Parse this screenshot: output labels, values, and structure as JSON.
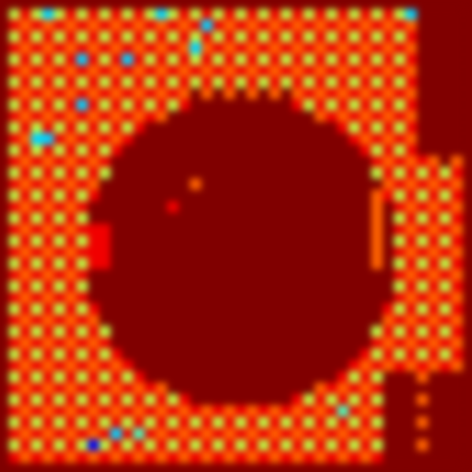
{
  "chart_data": {
    "type": "heatmap",
    "color": "jet",
    "tick_labels": false,
    "grid": false,
    "zlim": [
      0,
      9
    ],
    "cells": [
      [
        5,
        8,
        5,
        3,
        5,
        8,
        5,
        8,
        5,
        8,
        5,
        8,
        5,
        3,
        5,
        8,
        5,
        8,
        5,
        8,
        5,
        8,
        5,
        8,
        5,
        8,
        5,
        8,
        5,
        8,
        5,
        8,
        5,
        8,
        5,
        3,
        9,
        9,
        9,
        9
      ],
      [
        8,
        7,
        8,
        7,
        8,
        7,
        8,
        7,
        8,
        7,
        8,
        7,
        8,
        7,
        8,
        7,
        8,
        3,
        8,
        7,
        8,
        7,
        8,
        7,
        8,
        7,
        8,
        7,
        8,
        7,
        8,
        7,
        8,
        7,
        8,
        7,
        9,
        9,
        9,
        9
      ],
      [
        5,
        8,
        5,
        8,
        5,
        8,
        5,
        8,
        5,
        8,
        5,
        8,
        5,
        8,
        5,
        8,
        5,
        8,
        5,
        8,
        5,
        8,
        5,
        8,
        5,
        8,
        5,
        8,
        5,
        8,
        5,
        8,
        5,
        8,
        5,
        8,
        9,
        9,
        9,
        9
      ],
      [
        8,
        7,
        8,
        7,
        8,
        7,
        8,
        7,
        8,
        7,
        8,
        7,
        8,
        7,
        8,
        7,
        3,
        7,
        8,
        7,
        8,
        7,
        8,
        7,
        8,
        7,
        8,
        7,
        8,
        7,
        8,
        7,
        8,
        7,
        8,
        7,
        9,
        9,
        9,
        9
      ],
      [
        5,
        8,
        5,
        8,
        5,
        8,
        3,
        8,
        5,
        8,
        3,
        8,
        5,
        8,
        5,
        8,
        5,
        8,
        5,
        8,
        5,
        8,
        5,
        8,
        5,
        8,
        5,
        8,
        5,
        8,
        5,
        8,
        5,
        8,
        5,
        8,
        9,
        9,
        9,
        9
      ],
      [
        8,
        7,
        8,
        7,
        8,
        7,
        8,
        7,
        8,
        7,
        8,
        7,
        8,
        7,
        8,
        7,
        8,
        7,
        8,
        7,
        8,
        7,
        8,
        7,
        8,
        7,
        8,
        7,
        8,
        7,
        8,
        7,
        8,
        7,
        8,
        7,
        9,
        9,
        9,
        9
      ],
      [
        5,
        8,
        5,
        8,
        5,
        8,
        5,
        8,
        5,
        8,
        5,
        8,
        5,
        8,
        5,
        8,
        5,
        8,
        5,
        8,
        5,
        8,
        5,
        8,
        5,
        8,
        5,
        8,
        5,
        8,
        5,
        8,
        5,
        8,
        5,
        8,
        9,
        9,
        9,
        9
      ],
      [
        8,
        7,
        8,
        7,
        8,
        7,
        8,
        7,
        8,
        7,
        8,
        7,
        8,
        7,
        8,
        7,
        9,
        7,
        9,
        7,
        9,
        7,
        9,
        7,
        9,
        7,
        8,
        7,
        8,
        7,
        8,
        7,
        8,
        7,
        8,
        7,
        9,
        9,
        9,
        9
      ],
      [
        5,
        8,
        5,
        8,
        5,
        8,
        3,
        8,
        5,
        8,
        5,
        8,
        5,
        8,
        5,
        8,
        9,
        9,
        9,
        9,
        9,
        9,
        9,
        9,
        9,
        8,
        5,
        8,
        5,
        8,
        5,
        8,
        5,
        8,
        5,
        8,
        9,
        9,
        9,
        9
      ],
      [
        8,
        7,
        8,
        7,
        8,
        7,
        8,
        7,
        8,
        7,
        8,
        7,
        8,
        7,
        9,
        9,
        9,
        9,
        9,
        9,
        9,
        9,
        9,
        9,
        9,
        9,
        9,
        7,
        8,
        7,
        8,
        7,
        8,
        7,
        8,
        7,
        9,
        9,
        9,
        9
      ],
      [
        5,
        8,
        5,
        8,
        5,
        8,
        5,
        8,
        5,
        8,
        5,
        8,
        9,
        9,
        9,
        9,
        9,
        9,
        9,
        9,
        9,
        9,
        9,
        9,
        9,
        9,
        9,
        9,
        9,
        8,
        5,
        8,
        5,
        8,
        5,
        8,
        9,
        9,
        9,
        9
      ],
      [
        8,
        7,
        3,
        3,
        8,
        7,
        8,
        7,
        8,
        7,
        8,
        9,
        9,
        9,
        9,
        9,
        9,
        9,
        9,
        9,
        9,
        9,
        9,
        9,
        9,
        9,
        9,
        9,
        9,
        9,
        8,
        7,
        8,
        7,
        8,
        7,
        9,
        9,
        9,
        9
      ],
      [
        5,
        8,
        5,
        8,
        5,
        8,
        5,
        8,
        5,
        8,
        9,
        9,
        9,
        9,
        9,
        9,
        9,
        9,
        9,
        9,
        9,
        9,
        9,
        9,
        9,
        9,
        9,
        9,
        9,
        9,
        9,
        8,
        5,
        8,
        5,
        8,
        9,
        9,
        9,
        9
      ],
      [
        8,
        7,
        8,
        7,
        8,
        7,
        8,
        7,
        8,
        9,
        9,
        9,
        9,
        9,
        9,
        9,
        9,
        9,
        9,
        9,
        9,
        9,
        9,
        9,
        9,
        9,
        9,
        9,
        9,
        9,
        9,
        9,
        8,
        7,
        8,
        7,
        8,
        7,
        9,
        7
      ],
      [
        5,
        8,
        5,
        8,
        5,
        8,
        5,
        8,
        5,
        9,
        9,
        9,
        9,
        9,
        9,
        9,
        9,
        9,
        9,
        9,
        9,
        9,
        9,
        9,
        9,
        9,
        9,
        9,
        9,
        9,
        9,
        9,
        5,
        8,
        5,
        8,
        5,
        8,
        5,
        8
      ],
      [
        8,
        7,
        8,
        7,
        8,
        7,
        8,
        7,
        9,
        9,
        9,
        9,
        9,
        9,
        9,
        9,
        7,
        9,
        9,
        9,
        9,
        9,
        9,
        9,
        9,
        9,
        9,
        9,
        9,
        9,
        9,
        9,
        9,
        7,
        8,
        7,
        8,
        7,
        8,
        7
      ],
      [
        5,
        8,
        5,
        8,
        5,
        8,
        5,
        8,
        9,
        9,
        9,
        9,
        9,
        9,
        9,
        9,
        9,
        9,
        9,
        9,
        9,
        9,
        9,
        9,
        9,
        9,
        9,
        9,
        9,
        9,
        9,
        9,
        7,
        8,
        5,
        8,
        5,
        8,
        5,
        8
      ],
      [
        8,
        7,
        8,
        7,
        8,
        7,
        8,
        9,
        9,
        9,
        9,
        9,
        9,
        9,
        8,
        9,
        9,
        9,
        9,
        9,
        9,
        9,
        9,
        9,
        9,
        9,
        9,
        9,
        9,
        9,
        9,
        9,
        7,
        9,
        8,
        7,
        8,
        7,
        8,
        7
      ],
      [
        5,
        8,
        5,
        8,
        5,
        8,
        5,
        9,
        9,
        9,
        9,
        9,
        9,
        9,
        9,
        9,
        9,
        9,
        9,
        9,
        9,
        9,
        9,
        9,
        9,
        9,
        9,
        9,
        9,
        9,
        9,
        9,
        7,
        9,
        5,
        8,
        5,
        8,
        5,
        8
      ],
      [
        8,
        7,
        8,
        7,
        8,
        7,
        8,
        8,
        8,
        9,
        9,
        9,
        9,
        9,
        9,
        9,
        9,
        9,
        9,
        9,
        9,
        9,
        9,
        9,
        9,
        9,
        9,
        9,
        9,
        9,
        9,
        9,
        7,
        9,
        8,
        7,
        8,
        7,
        8,
        7
      ],
      [
        5,
        8,
        5,
        8,
        5,
        8,
        5,
        8,
        8,
        9,
        9,
        9,
        9,
        9,
        9,
        9,
        9,
        9,
        9,
        9,
        9,
        9,
        9,
        9,
        9,
        9,
        9,
        9,
        9,
        9,
        9,
        9,
        7,
        9,
        5,
        8,
        5,
        8,
        5,
        8
      ],
      [
        8,
        7,
        8,
        7,
        8,
        7,
        8,
        8,
        8,
        9,
        9,
        9,
        9,
        9,
        9,
        9,
        9,
        9,
        9,
        9,
        9,
        9,
        9,
        9,
        9,
        9,
        9,
        9,
        9,
        9,
        9,
        9,
        7,
        9,
        8,
        7,
        8,
        7,
        8,
        7
      ],
      [
        5,
        8,
        5,
        8,
        5,
        8,
        5,
        8,
        8,
        9,
        9,
        9,
        9,
        9,
        9,
        9,
        9,
        9,
        9,
        9,
        9,
        9,
        9,
        9,
        9,
        9,
        9,
        9,
        9,
        9,
        9,
        9,
        7,
        9,
        5,
        8,
        5,
        8,
        5,
        8
      ],
      [
        8,
        7,
        8,
        7,
        8,
        7,
        8,
        9,
        9,
        9,
        9,
        9,
        9,
        9,
        9,
        9,
        9,
        9,
        9,
        9,
        9,
        9,
        9,
        9,
        9,
        9,
        9,
        9,
        9,
        9,
        9,
        9,
        9,
        9,
        8,
        7,
        8,
        7,
        8,
        7
      ],
      [
        5,
        8,
        5,
        8,
        5,
        8,
        5,
        9,
        9,
        9,
        9,
        9,
        9,
        9,
        9,
        9,
        9,
        9,
        9,
        9,
        9,
        9,
        9,
        9,
        9,
        9,
        9,
        9,
        9,
        9,
        9,
        9,
        9,
        9,
        5,
        8,
        5,
        8,
        5,
        8
      ],
      [
        8,
        7,
        8,
        7,
        8,
        7,
        8,
        9,
        9,
        9,
        9,
        9,
        9,
        9,
        9,
        9,
        9,
        9,
        9,
        9,
        9,
        9,
        9,
        9,
        9,
        9,
        9,
        9,
        9,
        9,
        9,
        9,
        9,
        9,
        8,
        7,
        8,
        7,
        8,
        7
      ],
      [
        5,
        8,
        5,
        8,
        5,
        8,
        5,
        8,
        9,
        9,
        9,
        9,
        9,
        9,
        9,
        9,
        9,
        9,
        9,
        9,
        9,
        9,
        9,
        9,
        9,
        9,
        9,
        9,
        9,
        9,
        9,
        9,
        9,
        8,
        5,
        8,
        5,
        8,
        5,
        8
      ],
      [
        8,
        7,
        8,
        7,
        8,
        7,
        8,
        7,
        9,
        9,
        9,
        9,
        9,
        9,
        9,
        9,
        9,
        9,
        9,
        9,
        9,
        9,
        9,
        9,
        9,
        9,
        9,
        9,
        9,
        9,
        9,
        9,
        9,
        7,
        8,
        7,
        8,
        7,
        8,
        7
      ],
      [
        5,
        8,
        5,
        8,
        5,
        8,
        5,
        8,
        5,
        9,
        9,
        9,
        9,
        9,
        9,
        9,
        9,
        9,
        9,
        9,
        9,
        9,
        9,
        9,
        9,
        9,
        9,
        9,
        9,
        9,
        9,
        9,
        5,
        8,
        5,
        8,
        5,
        8,
        5,
        8
      ],
      [
        8,
        7,
        8,
        7,
        8,
        7,
        8,
        7,
        8,
        9,
        9,
        9,
        9,
        9,
        9,
        9,
        9,
        9,
        9,
        9,
        9,
        9,
        9,
        9,
        9,
        9,
        9,
        9,
        9,
        9,
        9,
        9,
        8,
        7,
        8,
        7,
        8,
        7,
        8,
        7
      ],
      [
        5,
        8,
        5,
        8,
        5,
        8,
        5,
        8,
        5,
        8,
        9,
        9,
        9,
        9,
        9,
        9,
        9,
        9,
        9,
        9,
        9,
        9,
        9,
        9,
        9,
        9,
        9,
        9,
        9,
        9,
        9,
        8,
        5,
        8,
        5,
        8,
        5,
        8,
        5,
        8
      ],
      [
        8,
        7,
        8,
        7,
        8,
        7,
        8,
        7,
        8,
        7,
        8,
        9,
        9,
        9,
        9,
        9,
        9,
        9,
        9,
        9,
        9,
        9,
        9,
        9,
        9,
        9,
        9,
        9,
        9,
        9,
        8,
        7,
        8,
        7,
        8,
        7,
        8,
        7,
        8,
        7
      ],
      [
        5,
        8,
        5,
        8,
        5,
        8,
        5,
        8,
        5,
        8,
        5,
        8,
        9,
        9,
        9,
        9,
        9,
        9,
        9,
        9,
        9,
        9,
        9,
        9,
        9,
        9,
        9,
        9,
        9,
        8,
        5,
        8,
        5,
        9,
        9,
        9,
        7,
        9,
        9,
        9
      ],
      [
        8,
        7,
        8,
        7,
        8,
        7,
        8,
        7,
        8,
        7,
        8,
        7,
        8,
        7,
        9,
        9,
        9,
        9,
        9,
        9,
        9,
        9,
        9,
        9,
        9,
        9,
        9,
        7,
        8,
        7,
        8,
        7,
        8,
        9,
        9,
        9,
        9,
        9,
        9,
        9
      ],
      [
        5,
        8,
        5,
        8,
        5,
        8,
        5,
        8,
        5,
        8,
        5,
        8,
        5,
        8,
        5,
        8,
        9,
        9,
        9,
        9,
        9,
        9,
        9,
        9,
        9,
        8,
        5,
        8,
        5,
        8,
        5,
        8,
        5,
        9,
        9,
        9,
        7,
        9,
        9,
        9
      ],
      [
        8,
        7,
        8,
        7,
        8,
        7,
        8,
        7,
        8,
        7,
        8,
        7,
        8,
        7,
        8,
        7,
        8,
        7,
        8,
        7,
        8,
        7,
        8,
        7,
        8,
        7,
        8,
        7,
        8,
        4,
        8,
        7,
        8,
        9,
        9,
        9,
        9,
        9,
        9,
        9
      ],
      [
        5,
        8,
        5,
        8,
        5,
        8,
        5,
        8,
        5,
        8,
        5,
        8,
        5,
        8,
        5,
        8,
        5,
        8,
        5,
        8,
        5,
        8,
        5,
        8,
        5,
        8,
        5,
        8,
        5,
        8,
        5,
        8,
        5,
        9,
        9,
        9,
        7,
        9,
        9,
        9
      ],
      [
        8,
        7,
        8,
        7,
        8,
        7,
        8,
        7,
        8,
        3,
        8,
        4,
        8,
        7,
        8,
        7,
        8,
        7,
        8,
        7,
        8,
        7,
        8,
        7,
        8,
        7,
        8,
        7,
        8,
        7,
        8,
        7,
        8,
        9,
        9,
        9,
        9,
        9,
        9,
        9
      ],
      [
        5,
        8,
        5,
        8,
        5,
        8,
        5,
        1,
        5,
        8,
        5,
        8,
        5,
        8,
        5,
        8,
        5,
        8,
        5,
        8,
        5,
        8,
        5,
        8,
        5,
        8,
        5,
        8,
        5,
        8,
        5,
        8,
        5,
        9,
        9,
        9,
        7,
        9,
        9,
        9
      ],
      [
        8,
        7,
        8,
        7,
        8,
        7,
        8,
        7,
        8,
        7,
        8,
        7,
        8,
        7,
        8,
        7,
        8,
        7,
        8,
        7,
        8,
        7,
        8,
        7,
        8,
        7,
        8,
        7,
        8,
        7,
        8,
        7,
        8,
        9,
        9,
        9,
        9,
        9,
        9,
        9
      ]
    ]
  }
}
